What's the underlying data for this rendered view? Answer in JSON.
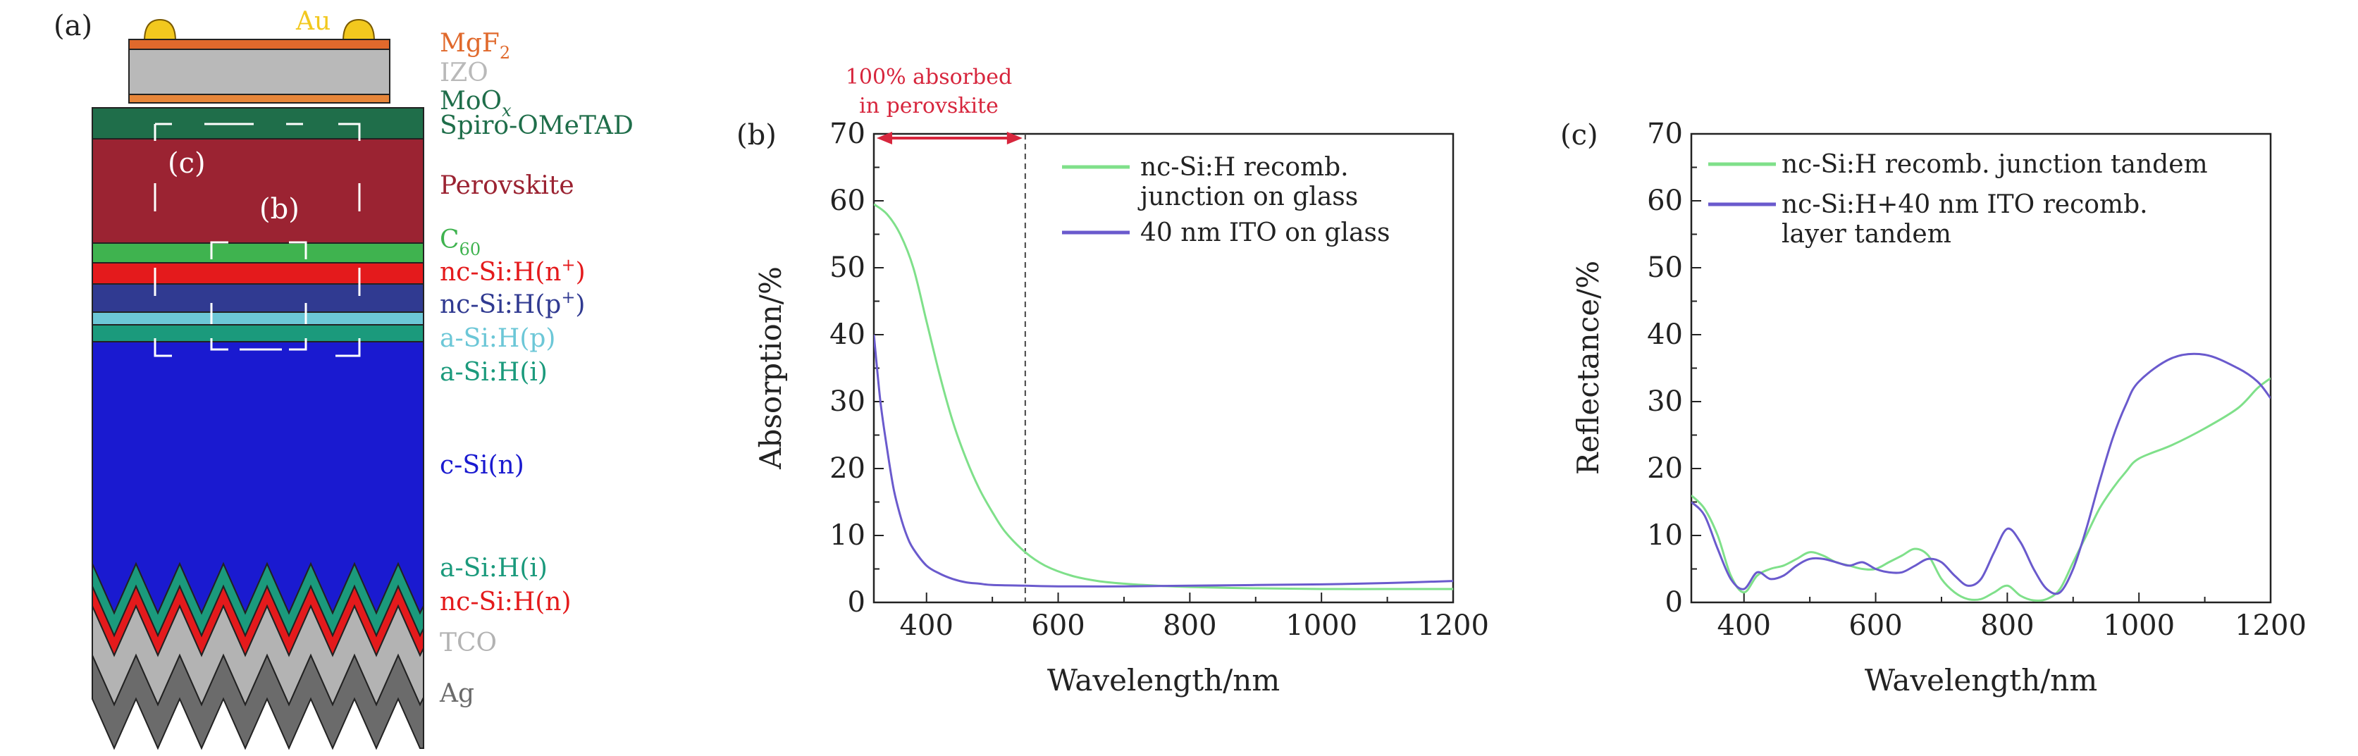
{
  "panel_a": {
    "panel_label": "(a)",
    "layers": [
      {
        "text": "Au",
        "color": "#f2c81e"
      },
      {
        "text": "MgF",
        "sub": "2",
        "color": "#e0692c"
      },
      {
        "text": "IZO",
        "color": "#b9b9b9"
      },
      {
        "text": "MoO",
        "sub": "x",
        "color": "#1f6e4a"
      },
      {
        "text": "Spiro-OMeTAD",
        "color": "#1f6e4a"
      },
      {
        "text": "Perovskite",
        "color": "#9b2332"
      },
      {
        "text": "C",
        "sub": "60",
        "color": "#3fb34f"
      },
      {
        "text": "nc-Si:H(n",
        "sup": "+",
        "tail": ")",
        "color": "#e41a1c"
      },
      {
        "text": "nc-Si:H(p",
        "sup": "+",
        "tail": ")",
        "color": "#303a91"
      },
      {
        "text": "a-Si:H(p)",
        "color": "#6cc7d7"
      },
      {
        "text": "a-Si:H(i)",
        "color": "#1b9a7c"
      },
      {
        "text": "c-Si(n)",
        "color": "#1a1ad0"
      },
      {
        "text": "a-Si:H(i)",
        "color": "#1b9a7c"
      },
      {
        "text": "nc-Si:H(n)",
        "color": "#e41a1c"
      },
      {
        "text": "TCO",
        "color": "#b3b3b3"
      },
      {
        "text": "Ag",
        "color": "#6b6b6b"
      }
    ],
    "zoom_labels": [
      "(c)",
      "(b)"
    ]
  },
  "chart_data": [
    {
      "panel_label": "(b)",
      "type": "line",
      "xlabel": "Wavelength/nm",
      "ylabel": "Absorption/%",
      "xlim": [
        320,
        1200
      ],
      "ylim": [
        0,
        70
      ],
      "xticks": [
        400,
        600,
        800,
        1000,
        1200
      ],
      "yticks": [
        0,
        10,
        20,
        30,
        40,
        50,
        60,
        70
      ],
      "legend_position": "top-right",
      "annotation": {
        "text_lines": [
          "100% absorbed",
          "in perovskite"
        ],
        "x_from": 320,
        "x_to": 550,
        "color": "#d7263d"
      },
      "vline_x": 550,
      "series": [
        {
          "name": "nc-Si:H recomb. junction on glass",
          "color": "#7fe08a",
          "x": [
            320,
            340,
            360,
            380,
            400,
            420,
            440,
            460,
            480,
            500,
            520,
            550,
            580,
            620,
            660,
            700,
            750,
            800,
            900,
            1000,
            1100,
            1200
          ],
          "y": [
            59.5,
            58,
            55,
            50,
            42,
            34,
            27,
            21.5,
            17,
            13.5,
            10.5,
            7.5,
            5.5,
            4,
            3.2,
            2.8,
            2.5,
            2.3,
            2.1,
            2,
            2,
            2
          ]
        },
        {
          "name": "40 nm ITO on glass",
          "color": "#6a5acd",
          "x": [
            320,
            330,
            340,
            350,
            360,
            370,
            380,
            400,
            420,
            440,
            460,
            480,
            500,
            550,
            600,
            700,
            800,
            900,
            1000,
            1100,
            1200
          ],
          "y": [
            40,
            30,
            23,
            17,
            13,
            10,
            8,
            5.5,
            4.3,
            3.5,
            3,
            2.8,
            2.6,
            2.5,
            2.4,
            2.4,
            2.5,
            2.6,
            2.7,
            2.9,
            3.2
          ]
        }
      ]
    },
    {
      "panel_label": "(c)",
      "type": "line",
      "xlabel": "Wavelength/nm",
      "ylabel": "Reflectance/%",
      "xlim": [
        320,
        1200
      ],
      "ylim": [
        0,
        70
      ],
      "xticks": [
        400,
        600,
        800,
        1000,
        1200
      ],
      "yticks": [
        0,
        10,
        20,
        30,
        40,
        50,
        60,
        70
      ],
      "legend_position": "top",
      "series": [
        {
          "name": "nc-Si:H recomb. junction tandem",
          "color": "#7fe08a",
          "x": [
            320,
            340,
            360,
            380,
            400,
            420,
            440,
            460,
            480,
            500,
            520,
            540,
            560,
            580,
            600,
            620,
            640,
            660,
            680,
            700,
            720,
            740,
            760,
            780,
            800,
            820,
            840,
            860,
            880,
            900,
            920,
            940,
            960,
            980,
            1000,
            1050,
            1100,
            1150,
            1180,
            1200
          ],
          "y": [
            16,
            14,
            10,
            4,
            1.5,
            4,
            5,
            5.5,
            6.5,
            7.5,
            7,
            6,
            5.5,
            5,
            5,
            6,
            7,
            8,
            7,
            3.5,
            1.5,
            0.5,
            0.5,
            1.5,
            2.5,
            1,
            0.3,
            0.5,
            2,
            6,
            10,
            14,
            17,
            19.5,
            21.5,
            23.5,
            26,
            29,
            32,
            33.5
          ]
        },
        {
          "name": "nc-Si:H+40 nm ITO recomb. layer tandem",
          "color": "#6a5acd",
          "x": [
            320,
            340,
            360,
            380,
            400,
            420,
            440,
            460,
            480,
            500,
            520,
            540,
            560,
            580,
            600,
            620,
            640,
            660,
            680,
            700,
            720,
            740,
            760,
            780,
            800,
            820,
            840,
            860,
            880,
            900,
            920,
            940,
            960,
            980,
            1000,
            1050,
            1100,
            1150,
            1180,
            1200
          ],
          "y": [
            15,
            13,
            8,
            3.5,
            2,
            4.5,
            3.5,
            4,
            5.5,
            6.5,
            6.5,
            6,
            5.5,
            6,
            5,
            4.5,
            4.5,
            5.5,
            6.5,
            6,
            4,
            2.5,
            3.5,
            7.5,
            11,
            9,
            5,
            2,
            1.5,
            5,
            11,
            18,
            24.5,
            29.5,
            33,
            36.5,
            37,
            35,
            33,
            30.5
          ]
        }
      ]
    }
  ]
}
